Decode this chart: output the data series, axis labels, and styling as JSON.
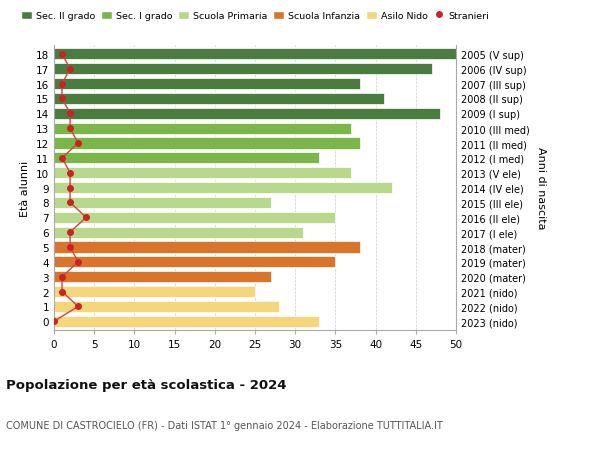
{
  "ages": [
    18,
    17,
    16,
    15,
    14,
    13,
    12,
    11,
    10,
    9,
    8,
    7,
    6,
    5,
    4,
    3,
    2,
    1,
    0
  ],
  "values": [
    51,
    47,
    38,
    41,
    48,
    37,
    38,
    33,
    37,
    42,
    27,
    35,
    31,
    38,
    35,
    27,
    25,
    28,
    33
  ],
  "stranieri": [
    1,
    2,
    1,
    1,
    2,
    2,
    3,
    1,
    2,
    2,
    2,
    4,
    2,
    2,
    3,
    1,
    1,
    3,
    0
  ],
  "right_labels": [
    "2005 (V sup)",
    "2006 (IV sup)",
    "2007 (III sup)",
    "2008 (II sup)",
    "2009 (I sup)",
    "2010 (III med)",
    "2011 (II med)",
    "2012 (I med)",
    "2013 (V ele)",
    "2014 (IV ele)",
    "2015 (III ele)",
    "2016 (II ele)",
    "2017 (I ele)",
    "2018 (mater)",
    "2019 (mater)",
    "2020 (mater)",
    "2021 (nido)",
    "2022 (nido)",
    "2023 (nido)"
  ],
  "bar_colors": [
    "#4a7c3f",
    "#4a7c3f",
    "#4a7c3f",
    "#4a7c3f",
    "#4a7c3f",
    "#7ab648",
    "#7ab648",
    "#7ab648",
    "#b8d88b",
    "#b8d88b",
    "#b8d88b",
    "#b8d88b",
    "#b8d88b",
    "#d9742a",
    "#d9742a",
    "#d9742a",
    "#f5d67a",
    "#f5d67a",
    "#f5d67a"
  ],
  "legend_labels": [
    "Sec. II grado",
    "Sec. I grado",
    "Scuola Primaria",
    "Scuola Infanzia",
    "Asilo Nido",
    "Stranieri"
  ],
  "legend_colors": [
    "#4a7c3f",
    "#7ab648",
    "#b8d88b",
    "#d9742a",
    "#f5d67a",
    "#cc2222"
  ],
  "title": "Popolazione per età scolastica - 2024",
  "subtitle": "COMUNE DI CASTROCIELO (FR) - Dati ISTAT 1° gennaio 2024 - Elaborazione TUTTITALIA.IT",
  "ylabel_left": "Età alunni",
  "ylabel_right": "Anni di nascita",
  "xlim": [
    0,
    50
  ],
  "xticks": [
    0,
    5,
    10,
    15,
    20,
    25,
    30,
    35,
    40,
    45,
    50
  ],
  "bg_color": "#ffffff",
  "grid_color": "#cccccc",
  "stranieri_color": "#cc2222",
  "stranieri_line_color": "#cc4444",
  "bar_height": 0.75,
  "bar_edgecolor": "white",
  "bar_linewidth": 0.5
}
